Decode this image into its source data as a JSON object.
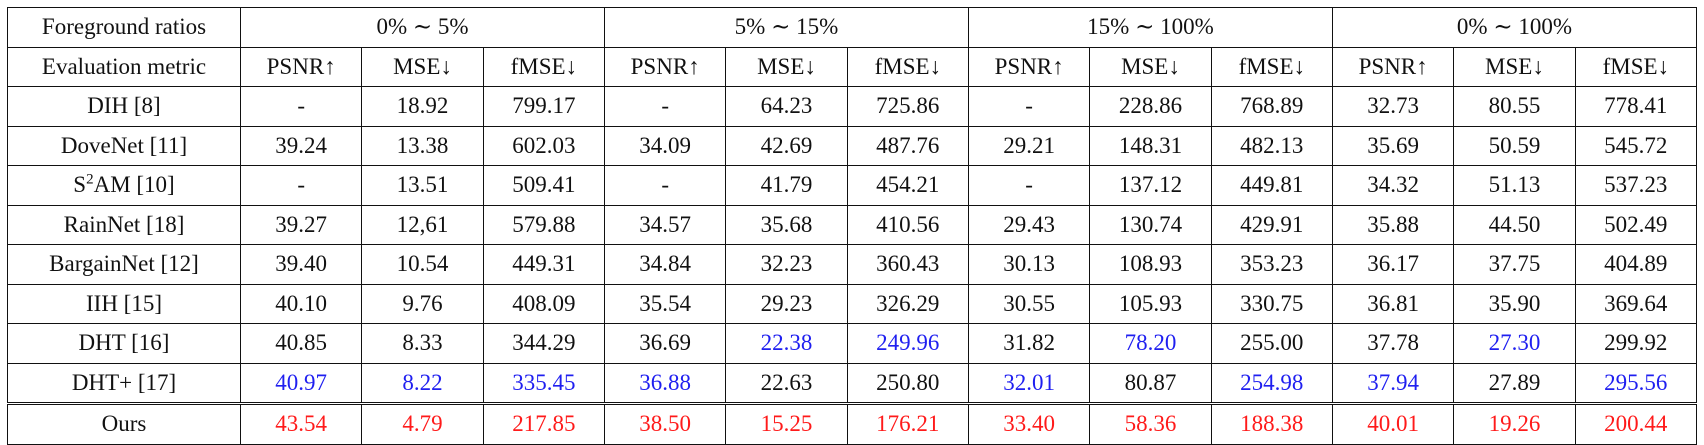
{
  "colors": {
    "best": "#ff1a1a",
    "second_best": "#1f1ff0",
    "text": "#111111"
  },
  "header": {
    "row_label_ratio": "Foreground ratios",
    "row_label_metric": "Evaluation metric",
    "groups": [
      "0% ∼ 5%",
      "5% ∼ 15%",
      "15% ∼ 100%",
      "0% ∼ 100%"
    ],
    "metrics": [
      "PSNR↑",
      "MSE↓",
      "fMSE↓"
    ]
  },
  "rows": [
    {
      "method": "DIH [8]",
      "cells": [
        {
          "v": "-",
          "hl": ""
        },
        {
          "v": "18.92",
          "hl": ""
        },
        {
          "v": "799.17",
          "hl": ""
        },
        {
          "v": "-",
          "hl": ""
        },
        {
          "v": "64.23",
          "hl": ""
        },
        {
          "v": "725.86",
          "hl": ""
        },
        {
          "v": "-",
          "hl": ""
        },
        {
          "v": "228.86",
          "hl": ""
        },
        {
          "v": "768.89",
          "hl": ""
        },
        {
          "v": "32.73",
          "hl": ""
        },
        {
          "v": "80.55",
          "hl": ""
        },
        {
          "v": "778.41",
          "hl": ""
        }
      ]
    },
    {
      "method": "DoveNet [11]",
      "cells": [
        {
          "v": "39.24",
          "hl": ""
        },
        {
          "v": "13.38",
          "hl": ""
        },
        {
          "v": "602.03",
          "hl": ""
        },
        {
          "v": "34.09",
          "hl": ""
        },
        {
          "v": "42.69",
          "hl": ""
        },
        {
          "v": "487.76",
          "hl": ""
        },
        {
          "v": "29.21",
          "hl": ""
        },
        {
          "v": "148.31",
          "hl": ""
        },
        {
          "v": "482.13",
          "hl": ""
        },
        {
          "v": "35.69",
          "hl": ""
        },
        {
          "v": "50.59",
          "hl": ""
        },
        {
          "v": "545.72",
          "hl": ""
        }
      ]
    },
    {
      "method": "AM [10]",
      "method_prefix": "S",
      "method_sup": "2",
      "cells": [
        {
          "v": "-",
          "hl": ""
        },
        {
          "v": "13.51",
          "hl": ""
        },
        {
          "v": "509.41",
          "hl": ""
        },
        {
          "v": "-",
          "hl": ""
        },
        {
          "v": "41.79",
          "hl": ""
        },
        {
          "v": "454.21",
          "hl": ""
        },
        {
          "v": "-",
          "hl": ""
        },
        {
          "v": "137.12",
          "hl": ""
        },
        {
          "v": "449.81",
          "hl": ""
        },
        {
          "v": "34.32",
          "hl": ""
        },
        {
          "v": "51.13",
          "hl": ""
        },
        {
          "v": "537.23",
          "hl": ""
        }
      ]
    },
    {
      "method": "RainNet [18]",
      "cells": [
        {
          "v": "39.27",
          "hl": ""
        },
        {
          "v": "12,61",
          "hl": ""
        },
        {
          "v": "579.88",
          "hl": ""
        },
        {
          "v": "34.57",
          "hl": ""
        },
        {
          "v": "35.68",
          "hl": ""
        },
        {
          "v": "410.56",
          "hl": ""
        },
        {
          "v": "29.43",
          "hl": ""
        },
        {
          "v": "130.74",
          "hl": ""
        },
        {
          "v": "429.91",
          "hl": ""
        },
        {
          "v": "35.88",
          "hl": ""
        },
        {
          "v": "44.50",
          "hl": ""
        },
        {
          "v": "502.49",
          "hl": ""
        }
      ]
    },
    {
      "method": "BargainNet [12]",
      "cells": [
        {
          "v": "39.40",
          "hl": ""
        },
        {
          "v": "10.54",
          "hl": ""
        },
        {
          "v": "449.31",
          "hl": ""
        },
        {
          "v": "34.84",
          "hl": ""
        },
        {
          "v": "32.23",
          "hl": ""
        },
        {
          "v": "360.43",
          "hl": ""
        },
        {
          "v": "30.13",
          "hl": ""
        },
        {
          "v": "108.93",
          "hl": ""
        },
        {
          "v": "353.23",
          "hl": ""
        },
        {
          "v": "36.17",
          "hl": ""
        },
        {
          "v": "37.75",
          "hl": ""
        },
        {
          "v": "404.89",
          "hl": ""
        }
      ]
    },
    {
      "method": "IIH [15]",
      "cells": [
        {
          "v": "40.10",
          "hl": ""
        },
        {
          "v": "9.76",
          "hl": ""
        },
        {
          "v": "408.09",
          "hl": ""
        },
        {
          "v": "35.54",
          "hl": ""
        },
        {
          "v": "29.23",
          "hl": ""
        },
        {
          "v": "326.29",
          "hl": ""
        },
        {
          "v": "30.55",
          "hl": ""
        },
        {
          "v": "105.93",
          "hl": ""
        },
        {
          "v": "330.75",
          "hl": ""
        },
        {
          "v": "36.81",
          "hl": ""
        },
        {
          "v": "35.90",
          "hl": ""
        },
        {
          "v": "369.64",
          "hl": ""
        }
      ]
    },
    {
      "method": "DHT [16]",
      "cells": [
        {
          "v": "40.85",
          "hl": ""
        },
        {
          "v": "8.33",
          "hl": ""
        },
        {
          "v": "344.29",
          "hl": ""
        },
        {
          "v": "36.69",
          "hl": ""
        },
        {
          "v": "22.38",
          "hl": "blue"
        },
        {
          "v": "249.96",
          "hl": "blue"
        },
        {
          "v": "31.82",
          "hl": ""
        },
        {
          "v": "78.20",
          "hl": "blue"
        },
        {
          "v": "255.00",
          "hl": ""
        },
        {
          "v": "37.78",
          "hl": ""
        },
        {
          "v": "27.30",
          "hl": "blue"
        },
        {
          "v": "299.92",
          "hl": ""
        }
      ]
    },
    {
      "method": "DHT+ [17]",
      "cells": [
        {
          "v": "40.97",
          "hl": "blue"
        },
        {
          "v": "8.22",
          "hl": "blue"
        },
        {
          "v": "335.45",
          "hl": "blue"
        },
        {
          "v": "36.88",
          "hl": "blue"
        },
        {
          "v": "22.63",
          "hl": ""
        },
        {
          "v": "250.80",
          "hl": ""
        },
        {
          "v": "32.01",
          "hl": "blue"
        },
        {
          "v": "80.87",
          "hl": ""
        },
        {
          "v": "254.98",
          "hl": "blue"
        },
        {
          "v": "37.94",
          "hl": "blue"
        },
        {
          "v": "27.89",
          "hl": ""
        },
        {
          "v": "295.56",
          "hl": "blue"
        }
      ]
    },
    {
      "method": "Ours",
      "double_rule": true,
      "cells": [
        {
          "v": "43.54",
          "hl": "red"
        },
        {
          "v": "4.79",
          "hl": "red"
        },
        {
          "v": "217.85",
          "hl": "red"
        },
        {
          "v": "38.50",
          "hl": "red"
        },
        {
          "v": "15.25",
          "hl": "red"
        },
        {
          "v": "176.21",
          "hl": "red"
        },
        {
          "v": "33.40",
          "hl": "red"
        },
        {
          "v": "58.36",
          "hl": "red"
        },
        {
          "v": "188.38",
          "hl": "red"
        },
        {
          "v": "40.01",
          "hl": "red"
        },
        {
          "v": "19.26",
          "hl": "red"
        },
        {
          "v": "200.44",
          "hl": "red"
        }
      ]
    }
  ]
}
